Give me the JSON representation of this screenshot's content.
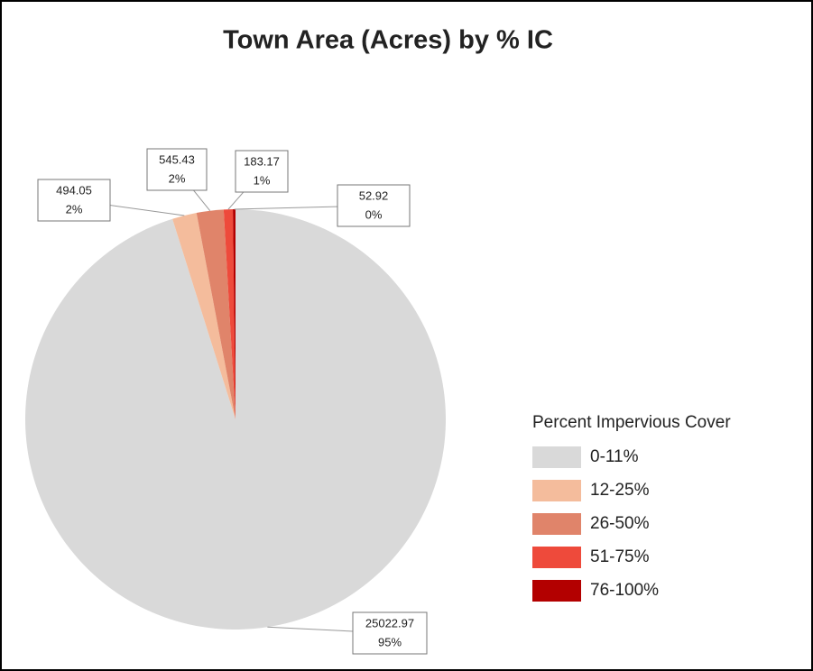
{
  "chart_data": {
    "type": "pie",
    "title": "Town  Area (Acres) by % IC",
    "legend_title": "Percent Impervious Cover",
    "categories": [
      "0-11%",
      "12-25%",
      "26-50%",
      "51-75%",
      "76-100%"
    ],
    "values": [
      25022.97,
      494.05,
      545.43,
      183.17,
      52.92
    ],
    "percent_labels": [
      "95%",
      "2%",
      "2%",
      "1%",
      "0%"
    ],
    "colors": [
      "#d9d9d9",
      "#f4bc9c",
      "#e0846a",
      "#ee4a3b",
      "#b30000"
    ],
    "legend": "right"
  }
}
